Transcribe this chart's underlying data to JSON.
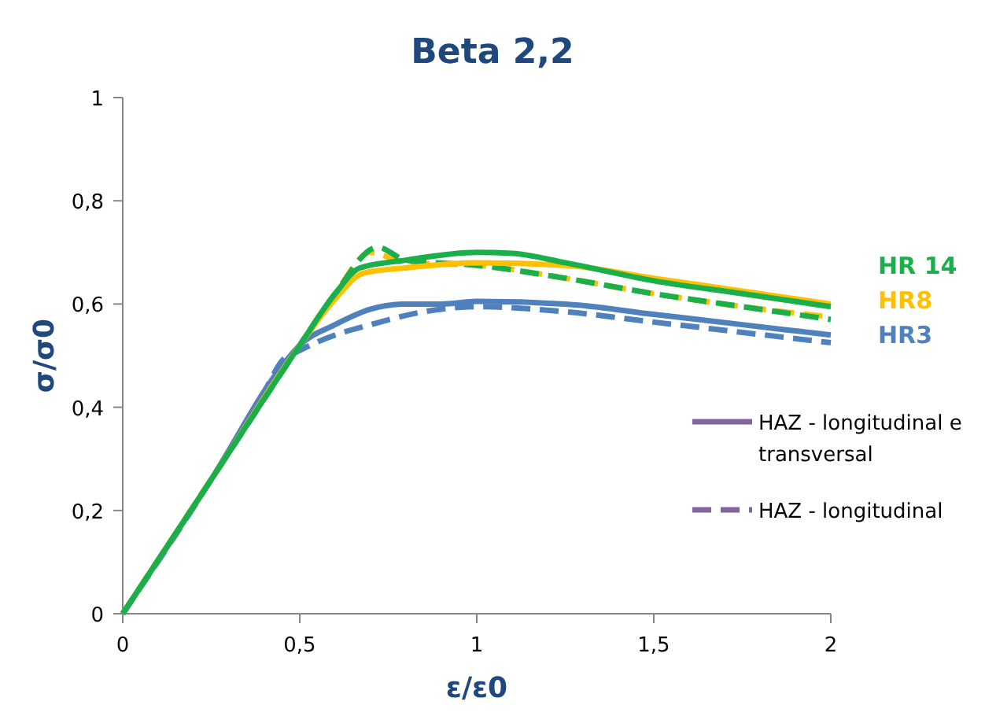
{
  "chart_data": {
    "type": "line",
    "title": "Beta 2,2",
    "xlabel": "ε/ε0",
    "ylabel": "σ/σ0",
    "xlim": [
      0,
      2
    ],
    "ylim": [
      0,
      1
    ],
    "xticks": [
      0,
      {
        "value": 0.5,
        "label": "0,5"
      },
      1,
      {
        "value": 1.5,
        "label": "1,5"
      },
      2
    ],
    "yticks": [
      0,
      {
        "value": 0.2,
        "label": "0,2"
      },
      {
        "value": 0.4,
        "label": "0,4"
      },
      {
        "value": 0.6,
        "label": "0,6"
      },
      {
        "value": 0.8,
        "label": "0,8"
      },
      1
    ],
    "grid": false,
    "legend": "right",
    "marker": "none",
    "series": [
      {
        "name": "HAZ - longitudinal e transversal",
        "color": "#8064a2",
        "line_style": "solid"
      },
      {
        "name": "HAZ - longitudinal",
        "color": "#8064a2",
        "line_style": "dashed"
      },
      {
        "color": "#ffc000",
        "line_style": "dashed",
        "x": [
          0,
          0.25,
          0.5,
          0.6,
          0.7,
          0.8,
          1,
          1.25,
          1.5,
          1.75,
          2
        ],
        "values": [
          0,
          0.26,
          0.52,
          0.62,
          0.7,
          0.68,
          0.675,
          0.65,
          0.62,
          0.595,
          0.575
        ]
      },
      {
        "color": "#1aaf4b",
        "line_style": "dashed",
        "x": [
          0,
          0.25,
          0.5,
          0.6,
          0.72,
          0.8,
          1,
          1.25,
          1.5,
          1.75,
          2
        ],
        "values": [
          0,
          0.26,
          0.52,
          0.62,
          0.71,
          0.685,
          0.675,
          0.65,
          0.62,
          0.595,
          0.57
        ]
      },
      {
        "color": "#4f81bd",
        "line_style": "dashed",
        "x": [
          0,
          0.25,
          0.4,
          0.45,
          0.5,
          0.6,
          0.7,
          0.85,
          1,
          1.25,
          1.5,
          1.75,
          2
        ],
        "values": [
          0,
          0.26,
          0.43,
          0.49,
          0.51,
          0.54,
          0.56,
          0.585,
          0.595,
          0.585,
          0.565,
          0.545,
          0.525
        ]
      },
      {
        "name": "HR3",
        "color": "#4f81bd",
        "line_style": "solid",
        "x": [
          0,
          0.25,
          0.45,
          0.5,
          0.6,
          0.7,
          0.8,
          0.9,
          1,
          1.25,
          1.5,
          1.75,
          2
        ],
        "values": [
          0,
          0.26,
          0.48,
          0.52,
          0.56,
          0.59,
          0.6,
          0.6,
          0.605,
          0.6,
          0.58,
          0.56,
          0.54
        ]
      },
      {
        "name": "HR8",
        "color": "#ffc000",
        "line_style": "solid",
        "x": [
          0,
          0.25,
          0.5,
          0.6,
          0.68,
          0.8,
          1,
          1.25,
          1.5,
          1.75,
          2
        ],
        "values": [
          0,
          0.26,
          0.52,
          0.61,
          0.66,
          0.67,
          0.68,
          0.675,
          0.65,
          0.625,
          0.6
        ]
      },
      {
        "name": "HR 14",
        "color": "#1aaf4b",
        "line_style": "solid",
        "x": [
          0,
          0.25,
          0.5,
          0.6,
          0.67,
          0.8,
          1,
          1.1,
          1.25,
          1.5,
          1.75,
          2
        ],
        "values": [
          0,
          0.26,
          0.52,
          0.62,
          0.67,
          0.685,
          0.7,
          0.698,
          0.68,
          0.645,
          0.62,
          0.595
        ]
      }
    ]
  }
}
